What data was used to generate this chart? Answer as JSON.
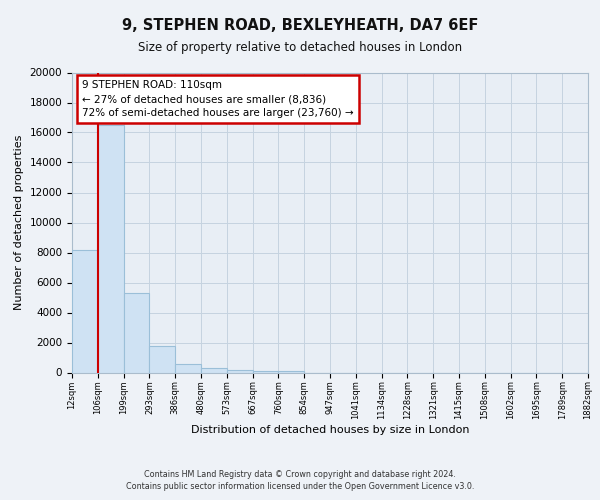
{
  "title": "9, STEPHEN ROAD, BEXLEYHEATH, DA7 6EF",
  "subtitle": "Size of property relative to detached houses in London",
  "xlabel": "Distribution of detached houses by size in London",
  "ylabel": "Number of detached properties",
  "bar_values": [
    8200,
    16500,
    5300,
    1750,
    600,
    300,
    200,
    100,
    100,
    0,
    0,
    0,
    0,
    0,
    0,
    0,
    0,
    0,
    0,
    0
  ],
  "bar_labels": [
    "12sqm",
    "106sqm",
    "199sqm",
    "293sqm",
    "386sqm",
    "480sqm",
    "573sqm",
    "667sqm",
    "760sqm",
    "854sqm",
    "947sqm",
    "1041sqm",
    "1134sqm",
    "1228sqm",
    "1321sqm",
    "1415sqm",
    "1508sqm",
    "1602sqm",
    "1695sqm",
    "1789sqm",
    "1882sqm"
  ],
  "bar_color": "#cfe2f3",
  "bar_edge_color": "#9bbfd8",
  "vline_color": "#cc0000",
  "annotation_title": "9 STEPHEN ROAD: 110sqm",
  "annotation_line1": "← 27% of detached houses are smaller (8,836)",
  "annotation_line2": "72% of semi-detached houses are larger (23,760) →",
  "annotation_box_facecolor": "#ffffff",
  "annotation_box_edgecolor": "#cc0000",
  "ylim": [
    0,
    20000
  ],
  "yticks": [
    0,
    2000,
    4000,
    6000,
    8000,
    10000,
    12000,
    14000,
    16000,
    18000,
    20000
  ],
  "footer1": "Contains HM Land Registry data © Crown copyright and database right 2024.",
  "footer2": "Contains public sector information licensed under the Open Government Licence v3.0.",
  "bg_color": "#eef2f7",
  "plot_bg_color": "#e8eef5",
  "grid_color": "#c5d3e0"
}
